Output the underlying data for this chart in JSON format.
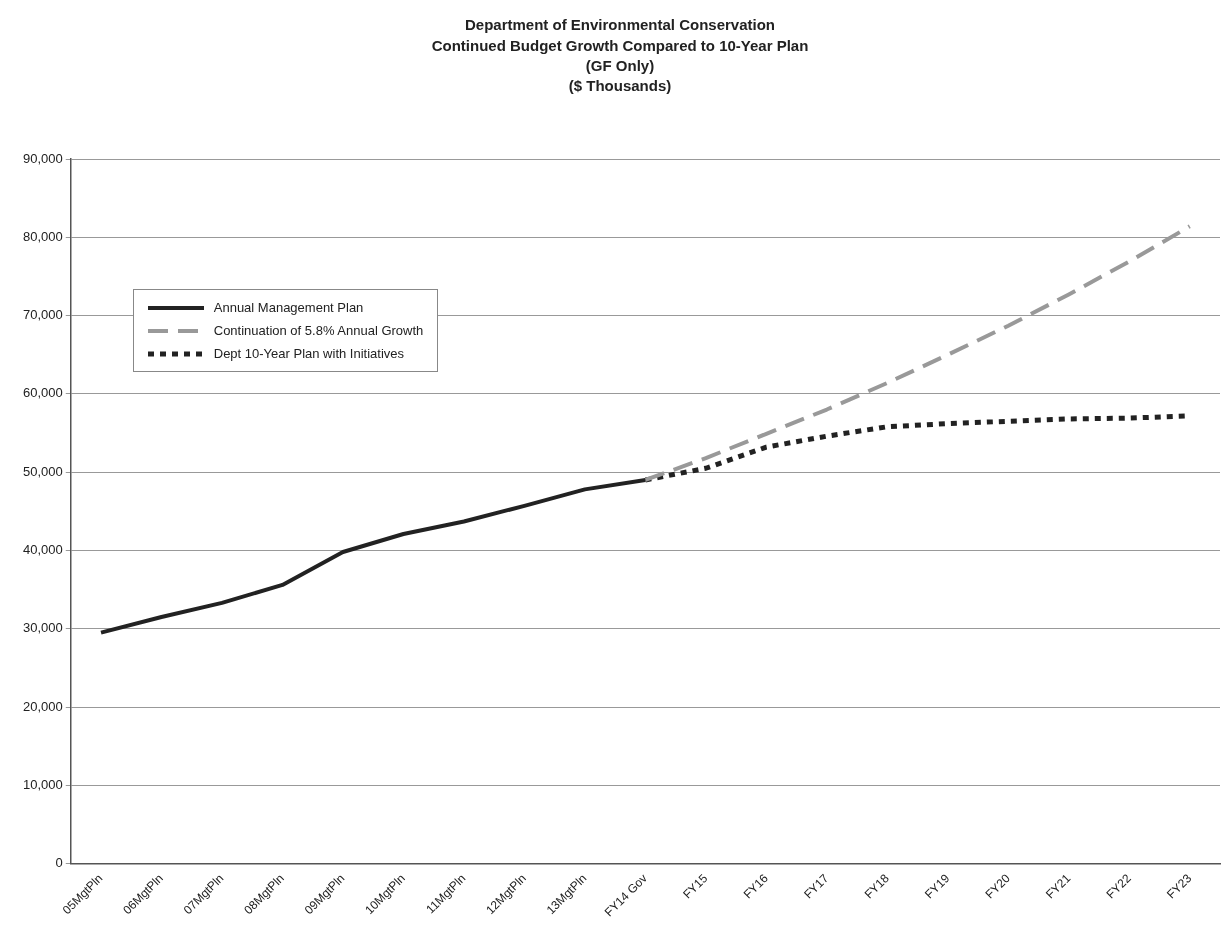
{
  "chart_data": {
    "type": "line",
    "title": "Department of Environmental Conservation\nContinued Budget Growth Compared to 10-Year Plan\n(GF Only)\n($ Thousands)",
    "categories": [
      "05MgtPln",
      "06MgtPln",
      "07MgtPln",
      "08MgtPln",
      "09MgtPln",
      "10MgtPln",
      "11MgtPln",
      "12MgtPln",
      "13MgtPln",
      "FY14 Gov",
      "FY15",
      "FY16",
      "FY17",
      "FY18",
      "FY19",
      "FY20",
      "FY21",
      "FY22",
      "FY23"
    ],
    "series": [
      {
        "name": "Annual Management Plan",
        "color": "#222222",
        "line_style": "solid",
        "values": [
          29500,
          31500,
          33300,
          35600,
          39800,
          42100,
          43700,
          45700,
          47800,
          49000,
          null,
          null,
          null,
          null,
          null,
          null,
          null,
          null,
          null
        ]
      },
      {
        "name": "Continuation of 5.8% Annual Growth",
        "color": "#999999",
        "line_style": "dashed",
        "values": [
          null,
          null,
          null,
          null,
          null,
          null,
          null,
          null,
          null,
          49000,
          51800,
          54900,
          58000,
          61400,
          65000,
          68700,
          72700,
          76900,
          81400
        ]
      },
      {
        "name": "Dept 10-Year Plan with Initiatives",
        "color": "#222222",
        "line_style": "dotted",
        "values": [
          null,
          null,
          null,
          null,
          null,
          null,
          null,
          null,
          null,
          49000,
          50500,
          53200,
          54600,
          55800,
          56200,
          56500,
          56800,
          56900,
          57200
        ]
      }
    ],
    "ylim": [
      0,
      90000
    ],
    "yticks": [
      {
        "value": 0,
        "label": "0"
      },
      {
        "value": 10000,
        "label": "10,000"
      },
      {
        "value": 20000,
        "label": "20,000"
      },
      {
        "value": 30000,
        "label": "30,000"
      },
      {
        "value": 40000,
        "label": "40,000"
      },
      {
        "value": 50000,
        "label": "50,000"
      },
      {
        "value": 60000,
        "label": "60,000"
      },
      {
        "value": 70000,
        "label": "70,000"
      },
      {
        "value": 80000,
        "label": "80,000"
      },
      {
        "value": 90000,
        "label": "90,000"
      }
    ],
    "grid": "y",
    "legend": "top left",
    "marker": "none"
  }
}
